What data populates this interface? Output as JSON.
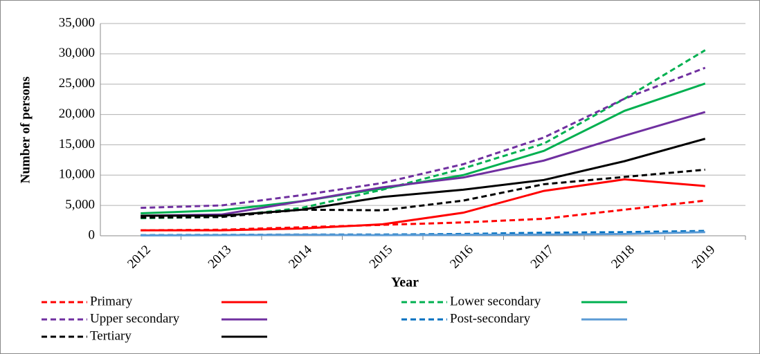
{
  "chart_data": {
    "type": "line",
    "y_label": "Number of persons",
    "x_label": "Year",
    "categories": [
      "2012",
      "2013",
      "2014",
      "2015",
      "2016",
      "2017",
      "2018",
      "2019"
    ],
    "ylim": [
      0,
      35000
    ],
    "yticks": [
      0,
      {
        "value": 5000,
        "label": "5,000"
      },
      {
        "value": 10000,
        "label": "10,000"
      },
      {
        "value": 15000,
        "label": "15,000"
      },
      {
        "value": 20000,
        "label": "20,000"
      },
      {
        "value": 25000,
        "label": "25,000"
      },
      {
        "value": 30000,
        "label": "30,000"
      },
      {
        "value": 35000,
        "label": "35,000"
      }
    ],
    "grid": true,
    "series": [
      {
        "name": "Primary",
        "color": "#ff0000",
        "style": "dashed",
        "values": [
          900,
          1000,
          1400,
          1800,
          2200,
          2800,
          4300,
          5800
        ]
      },
      {
        "name": null,
        "color": "#ff0000",
        "style": "solid",
        "values": [
          900,
          900,
          1200,
          1900,
          3800,
          7400,
          9300,
          8200
        ]
      },
      {
        "name": "Lower secondary",
        "color": "#00b050",
        "style": "dashed",
        "values": [
          2900,
          3100,
          4600,
          7600,
          11100,
          15200,
          22600,
          30600
        ]
      },
      {
        "name": null,
        "color": "#00b050",
        "style": "solid",
        "values": [
          3700,
          4200,
          5700,
          7800,
          10000,
          14000,
          20600,
          25100
        ]
      },
      {
        "name": "Upper secondary",
        "color": "#7030a0",
        "style": "dashed",
        "values": [
          4600,
          5000,
          6700,
          8700,
          11800,
          16200,
          22600,
          27700
        ]
      },
      {
        "name": null,
        "color": "#7030a0",
        "style": "solid",
        "values": [
          3300,
          3500,
          5700,
          8000,
          9600,
          12400,
          16500,
          20400
        ]
      },
      {
        "name": "Post-secondary",
        "color": "#0070c0",
        "style": "dashed",
        "values": [
          100,
          150,
          200,
          200,
          300,
          500,
          600,
          800
        ]
      },
      {
        "name": null,
        "color": "#5b9bd5",
        "style": "solid",
        "values": [
          50,
          100,
          150,
          100,
          150,
          200,
          300,
          600
        ]
      },
      {
        "name": "Tertiary",
        "color": "#000000",
        "style": "dashed",
        "values": [
          3000,
          3100,
          4300,
          4200,
          5800,
          8500,
          9700,
          10900
        ]
      },
      {
        "name": null,
        "color": "#000000",
        "style": "solid",
        "values": [
          3300,
          3300,
          4300,
          6400,
          7600,
          9200,
          12300,
          16000
        ]
      }
    ]
  }
}
